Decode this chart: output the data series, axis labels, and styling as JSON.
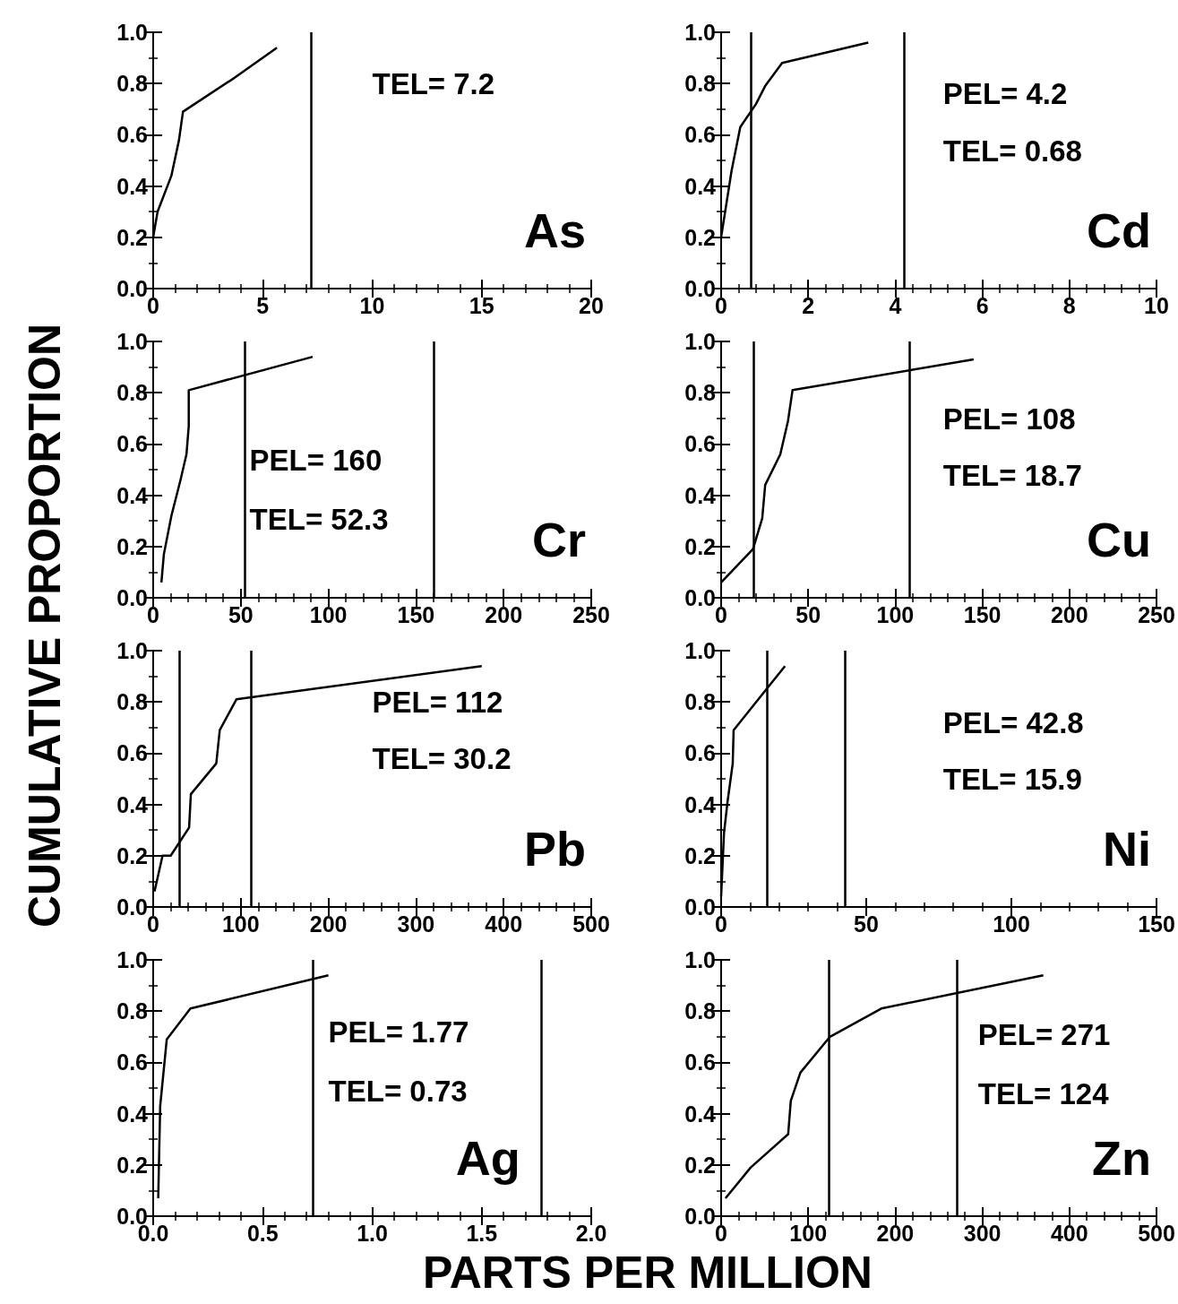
{
  "chart_data": [
    {
      "type": "line",
      "ylabel": "CUMULATIVE PROPORTION",
      "x": [
        0,
        0.2,
        0.83,
        1.18,
        1.36,
        3.67,
        5.65
      ],
      "series": [
        {
          "color": "#000000",
          "values": [
            0.2,
            0.3,
            0.44,
            0.58,
            0.69,
            0.82,
            0.94
          ]
        }
      ],
      "xlim": [
        0,
        20
      ],
      "xticks": [
        0,
        5,
        10,
        15,
        20
      ],
      "ylim": [
        0,
        1
      ],
      "yticks": [
        {
          "value": 0,
          "label": "0.0"
        },
        {
          "value": 0.2,
          "label": "0.2"
        },
        {
          "value": 0.4,
          "label": "0.4"
        },
        {
          "value": 0.6,
          "label": "0.6"
        },
        {
          "value": 0.8,
          "label": "0.8"
        },
        {
          "value": 1,
          "label": "1.0"
        }
      ],
      "ref_lines": [
        {
          "axis": "x",
          "value": 7.2
        }
      ],
      "annotations": [
        "TEL= 7.2",
        "As"
      ]
    },
    {
      "type": "line",
      "x": [
        0,
        0.24,
        0.44,
        0.8,
        1.01,
        1.4,
        3.38
      ],
      "series": [
        {
          "color": "#000000",
          "values": [
            0.2,
            0.46,
            0.63,
            0.72,
            0.79,
            0.88,
            0.96
          ]
        }
      ],
      "xlim": [
        0,
        10
      ],
      "xticks": [
        0,
        2,
        4,
        6,
        8,
        10
      ],
      "ylim": [
        0,
        1
      ],
      "yticks": [
        {
          "value": 0,
          "label": "0.0"
        },
        {
          "value": 0.2,
          "label": "0.2"
        },
        {
          "value": 0.4,
          "label": "0.4"
        },
        {
          "value": 0.6,
          "label": "0.6"
        },
        {
          "value": 0.8,
          "label": "0.8"
        },
        {
          "value": 1,
          "label": "1.0"
        }
      ],
      "ref_lines": [
        {
          "axis": "x",
          "value": 0.68
        },
        {
          "axis": "x",
          "value": 4.2
        }
      ],
      "annotations": [
        "PEL= 4.2",
        "TEL= 0.68",
        "Cd"
      ]
    },
    {
      "type": "line",
      "x": [
        4.7,
        6.1,
        10.4,
        15.6,
        19,
        20.3,
        20.3,
        91
      ],
      "series": [
        {
          "color": "#000000",
          "values": [
            0.06,
            0.17,
            0.32,
            0.46,
            0.56,
            0.67,
            0.81,
            0.94
          ]
        }
      ],
      "xlim": [
        0,
        250
      ],
      "xticks": [
        0,
        50,
        100,
        150,
        200,
        250
      ],
      "ylim": [
        0,
        1
      ],
      "yticks": [
        {
          "value": 0,
          "label": "0.0"
        },
        {
          "value": 0.2,
          "label": "0.2"
        },
        {
          "value": 0.4,
          "label": "0.4"
        },
        {
          "value": 0.6,
          "label": "0.6"
        },
        {
          "value": 0.8,
          "label": "0.8"
        },
        {
          "value": 1,
          "label": "1.0"
        }
      ],
      "ref_lines": [
        {
          "axis": "x",
          "value": 52.3
        },
        {
          "axis": "x",
          "value": 160
        }
      ],
      "annotations": [
        "PEL= 160",
        "TEL= 52.3",
        "Cr"
      ]
    },
    {
      "type": "line",
      "x": [
        0,
        18.3,
        23.6,
        25.3,
        34,
        38.4,
        41,
        145
      ],
      "series": [
        {
          "color": "#000000",
          "values": [
            0.06,
            0.19,
            0.31,
            0.44,
            0.56,
            0.69,
            0.81,
            0.93
          ]
        }
      ],
      "xlim": [
        0,
        250
      ],
      "xticks": [
        0,
        50,
        100,
        150,
        200,
        250
      ],
      "ylim": [
        0,
        1
      ],
      "yticks": [
        {
          "value": 0,
          "label": "0.0"
        },
        {
          "value": 0.2,
          "label": "0.2"
        },
        {
          "value": 0.4,
          "label": "0.4"
        },
        {
          "value": 0.6,
          "label": "0.6"
        },
        {
          "value": 0.8,
          "label": "0.8"
        },
        {
          "value": 1,
          "label": "1.0"
        }
      ],
      "ref_lines": [
        {
          "axis": "x",
          "value": 18.7
        },
        {
          "axis": "x",
          "value": 108
        }
      ],
      "annotations": [
        "PEL= 108",
        "TEL= 18.7",
        "Cu"
      ]
    },
    {
      "type": "line",
      "x": [
        1.5,
        10.7,
        20,
        41,
        43,
        72,
        76,
        95,
        375
      ],
      "series": [
        {
          "color": "#000000",
          "values": [
            0.06,
            0.2,
            0.2,
            0.31,
            0.44,
            0.56,
            0.69,
            0.81,
            0.94
          ]
        }
      ],
      "xlim": [
        0,
        500
      ],
      "xticks": [
        0,
        100,
        200,
        300,
        400,
        500
      ],
      "ylim": [
        0,
        1
      ],
      "yticks": [
        {
          "value": 0,
          "label": "0.0"
        },
        {
          "value": 0.2,
          "label": "0.2"
        },
        {
          "value": 0.4,
          "label": "0.4"
        },
        {
          "value": 0.6,
          "label": "0.6"
        },
        {
          "value": 0.8,
          "label": "0.8"
        },
        {
          "value": 1,
          "label": "1.0"
        }
      ],
      "ref_lines": [
        {
          "axis": "x",
          "value": 30.2
        },
        {
          "axis": "x",
          "value": 112
        }
      ],
      "annotations": [
        "PEL= 112",
        "TEL= 30.2",
        "Pb"
      ]
    },
    {
      "type": "line",
      "x": [
        0,
        1,
        2.2,
        4,
        4.3,
        22
      ],
      "series": [
        {
          "color": "#000000",
          "values": [
            0.04,
            0.29,
            0.41,
            0.56,
            0.69,
            0.94
          ]
        }
      ],
      "xlim": [
        0,
        150
      ],
      "xticks": [
        0,
        50,
        100,
        150
      ],
      "ylim": [
        0,
        1
      ],
      "yticks": [
        {
          "value": 0,
          "label": "0.0"
        },
        {
          "value": 0.2,
          "label": "0.2"
        },
        {
          "value": 0.4,
          "label": "0.4"
        },
        {
          "value": 0.6,
          "label": "0.6"
        },
        {
          "value": 0.8,
          "label": "0.8"
        },
        {
          "value": 1,
          "label": "1.0"
        }
      ],
      "ref_lines": [
        {
          "axis": "x",
          "value": 15.9
        },
        {
          "axis": "x",
          "value": 42.8
        }
      ],
      "annotations": [
        "PEL= 42.8",
        "TEL= 15.9",
        "Ni"
      ]
    },
    {
      "type": "line",
      "xlabel": "PARTS PER MILLION",
      "x": [
        0.023,
        0.032,
        0.062,
        0.17,
        0.8
      ],
      "series": [
        {
          "color": "#000000",
          "values": [
            0.07,
            0.43,
            0.69,
            0.81,
            0.94
          ]
        }
      ],
      "xlim": [
        0,
        2
      ],
      "xticks": [
        {
          "value": 0,
          "label": "0.0"
        },
        {
          "value": 0.5,
          "label": "0.5"
        },
        {
          "value": 1,
          "label": "1.0"
        },
        {
          "value": 1.5,
          "label": "1.5"
        },
        {
          "value": 2,
          "label": "2.0"
        }
      ],
      "ylim": [
        0,
        1
      ],
      "yticks": [
        {
          "value": 0,
          "label": "0.0"
        },
        {
          "value": 0.2,
          "label": "0.2"
        },
        {
          "value": 0.4,
          "label": "0.4"
        },
        {
          "value": 0.6,
          "label": "0.6"
        },
        {
          "value": 0.8,
          "label": "0.8"
        },
        {
          "value": 1,
          "label": "1.0"
        }
      ],
      "ref_lines": [
        {
          "axis": "x",
          "value": 0.73
        },
        {
          "axis": "x",
          "value": 1.77
        }
      ],
      "annotations": [
        "PEL= 1.77",
        "TEL= 0.73",
        "Ag"
      ]
    },
    {
      "type": "line",
      "x": [
        5,
        34,
        77,
        80,
        91,
        125,
        184,
        370
      ],
      "series": [
        {
          "color": "#000000",
          "values": [
            0.07,
            0.19,
            0.32,
            0.45,
            0.56,
            0.7,
            0.81,
            0.94
          ]
        }
      ],
      "xlim": [
        0,
        500
      ],
      "xticks": [
        0,
        100,
        200,
        300,
        400,
        500
      ],
      "ylim": [
        0,
        1
      ],
      "yticks": [
        {
          "value": 0,
          "label": "0.0"
        },
        {
          "value": 0.2,
          "label": "0.2"
        },
        {
          "value": 0.4,
          "label": "0.4"
        },
        {
          "value": 0.6,
          "label": "0.6"
        },
        {
          "value": 0.8,
          "label": "0.8"
        },
        {
          "value": 1,
          "label": "1.0"
        }
      ],
      "ref_lines": [
        {
          "axis": "x",
          "value": 124
        },
        {
          "axis": "x",
          "value": 271
        }
      ],
      "annotations": [
        "PEL= 271",
        "TEL= 124",
        "Zn"
      ]
    }
  ]
}
